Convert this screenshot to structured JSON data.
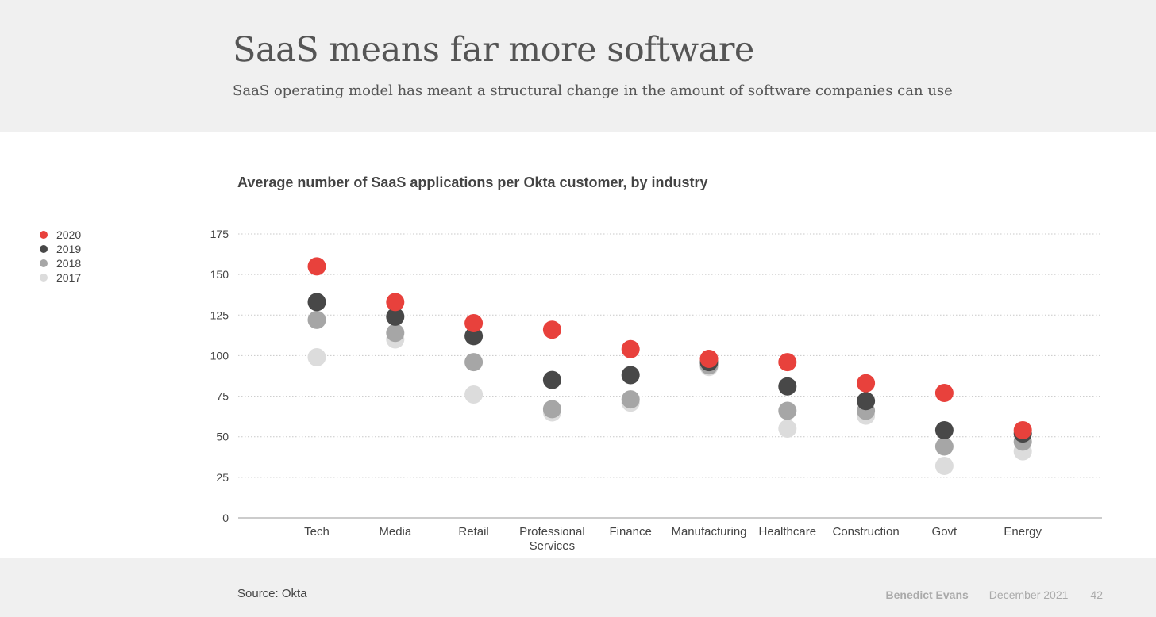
{
  "slide": {
    "title": "SaaS means far more software",
    "subtitle": "SaaS operating model has meant a structural change in the amount of software companies can use"
  },
  "footer": {
    "source": "Source: Okta",
    "author": "Benedict Evans",
    "separator": "—",
    "date": "December 2021",
    "page": "42"
  },
  "chart_data": {
    "type": "scatter",
    "title": "Average number of SaaS applications per Okta customer, by industry",
    "xlabel": "",
    "ylabel": "",
    "ylim": [
      0,
      175
    ],
    "yticks": [
      0,
      25,
      50,
      75,
      100,
      125,
      150,
      175
    ],
    "grid": true,
    "legend_position": "left",
    "categories": [
      "Tech",
      "Media",
      "Retail",
      "Professional Services",
      "Finance",
      "Manufacturing",
      "Healthcare",
      "Construction",
      "Govt",
      "Energy"
    ],
    "category_lines": [
      [
        "Tech"
      ],
      [
        "Media"
      ],
      [
        "Retail"
      ],
      [
        "Professional",
        "Services"
      ],
      [
        "Finance"
      ],
      [
        "Manufacturing"
      ],
      [
        "Healthcare"
      ],
      [
        "Construction"
      ],
      [
        "Govt"
      ],
      [
        "Energy"
      ]
    ],
    "series": [
      {
        "name": "2020",
        "color": "#e8413c",
        "values": [
          155,
          133,
          120,
          116,
          104,
          98,
          96,
          83,
          77,
          54
        ]
      },
      {
        "name": "2019",
        "color": "#484848",
        "values": [
          133,
          124,
          112,
          85,
          88,
          96,
          81,
          72,
          54,
          52
        ]
      },
      {
        "name": "2018",
        "color": "#a6a6a6",
        "values": [
          122,
          114,
          96,
          67,
          73,
          94,
          66,
          66,
          44,
          47
        ]
      },
      {
        "name": "2017",
        "color": "#dcdcdc",
        "values": [
          99,
          110,
          76,
          65,
          71,
          93,
          55,
          63,
          32,
          41
        ]
      }
    ]
  }
}
